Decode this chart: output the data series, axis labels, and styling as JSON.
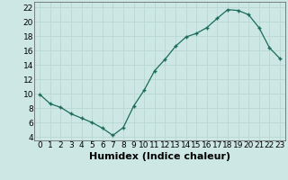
{
  "title": "",
  "xlabel": "Humidex (Indice chaleur)",
  "x_values": [
    0,
    1,
    2,
    3,
    4,
    5,
    6,
    7,
    8,
    9,
    10,
    11,
    12,
    13,
    14,
    15,
    16,
    17,
    18,
    19,
    20,
    21,
    22,
    23
  ],
  "y_values": [
    9.9,
    8.6,
    8.1,
    7.2,
    6.6,
    6.0,
    5.2,
    4.2,
    5.3,
    8.3,
    10.5,
    13.2,
    14.8,
    16.6,
    17.9,
    18.4,
    19.2,
    20.5,
    21.7,
    21.6,
    21.0,
    19.2,
    16.4,
    14.9
  ],
  "line_color": "#1a6b5a",
  "marker": "+",
  "marker_size": 3.5,
  "bg_color": "#cde8e4",
  "grid_color": "#b8d8d2",
  "ylim": [
    3.5,
    22.8
  ],
  "xlim": [
    -0.5,
    23.5
  ],
  "yticks": [
    4,
    6,
    8,
    10,
    12,
    14,
    16,
    18,
    20,
    22
  ],
  "xticks": [
    0,
    1,
    2,
    3,
    4,
    5,
    6,
    7,
    8,
    9,
    10,
    11,
    12,
    13,
    14,
    15,
    16,
    17,
    18,
    19,
    20,
    21,
    22,
    23
  ],
  "tick_label_fontsize": 6.5,
  "xlabel_fontsize": 8,
  "axis_bg": "#cde8e4",
  "fig_bg": "#cde8e4"
}
